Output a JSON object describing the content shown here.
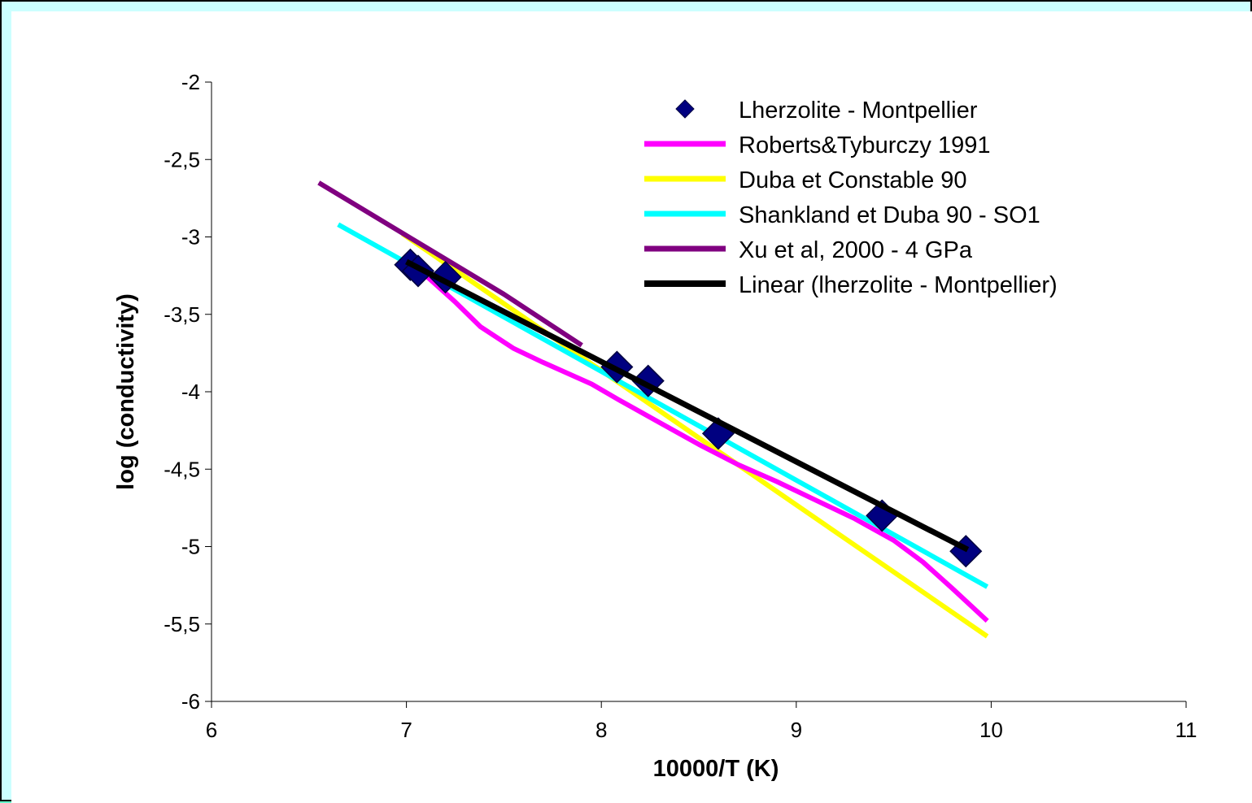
{
  "colors": {
    "page_border": "#66ffcc",
    "frame_fill": "#ccffff",
    "plot_fill": "#ffffff"
  },
  "chart_data": {
    "type": "scatter",
    "xlabel": "10000/T (K)",
    "ylabel": "log (conductivity)",
    "xlim": [
      6,
      11
    ],
    "ylim": [
      -6,
      -2
    ],
    "x_ticks": [
      "6",
      "7",
      "8",
      "9",
      "10",
      "11"
    ],
    "y_ticks": [
      "-2",
      "-2,5",
      "-3",
      "-3,5",
      "-4",
      "-4,5",
      "-5",
      "-5,5",
      "-6"
    ],
    "grid": false,
    "legend_position": "top-right",
    "series": [
      {
        "name": "Lherzolite - Montpellier",
        "kind": "markers",
        "marker": "diamond",
        "color": "#000080",
        "points": [
          [
            7.02,
            -3.18
          ],
          [
            7.06,
            -3.22
          ],
          [
            7.2,
            -3.26
          ],
          [
            8.08,
            -3.84
          ],
          [
            8.24,
            -3.93
          ],
          [
            8.6,
            -4.27
          ],
          [
            9.44,
            -4.8
          ],
          [
            9.87,
            -5.03
          ]
        ]
      },
      {
        "name": "Roberts&Tyburczy 1991",
        "kind": "line",
        "color": "#ff00ff",
        "points": [
          [
            7.1,
            -3.25
          ],
          [
            7.25,
            -3.42
          ],
          [
            7.38,
            -3.58
          ],
          [
            7.55,
            -3.72
          ],
          [
            7.7,
            -3.81
          ],
          [
            7.95,
            -3.95
          ],
          [
            8.1,
            -4.06
          ],
          [
            8.3,
            -4.2
          ],
          [
            8.5,
            -4.34
          ],
          [
            8.7,
            -4.47
          ],
          [
            8.9,
            -4.58
          ],
          [
            9.1,
            -4.7
          ],
          [
            9.3,
            -4.82
          ],
          [
            9.5,
            -4.96
          ],
          [
            9.65,
            -5.1
          ],
          [
            9.8,
            -5.27
          ],
          [
            9.98,
            -5.48
          ]
        ]
      },
      {
        "name": "Duba et Constable 90",
        "kind": "line",
        "color": "#ffff00",
        "points": [
          [
            6.98,
            -2.98
          ],
          [
            9.98,
            -5.58
          ]
        ]
      },
      {
        "name": "Shankland et Duba 90 - SO1",
        "kind": "line",
        "color": "#00ffff",
        "points": [
          [
            6.65,
            -2.92
          ],
          [
            9.98,
            -5.26
          ]
        ]
      },
      {
        "name": "Xu et al, 2000 - 4 GPa",
        "kind": "line",
        "color": "#800080",
        "points": [
          [
            6.55,
            -2.65
          ],
          [
            7.5,
            -3.37
          ],
          [
            7.9,
            -3.7
          ]
        ]
      },
      {
        "name": "Linear (lherzolite - Montpellier)",
        "kind": "line",
        "color": "#000000",
        "points": [
          [
            7.0,
            -3.16
          ],
          [
            9.88,
            -5.02
          ]
        ]
      }
    ]
  }
}
